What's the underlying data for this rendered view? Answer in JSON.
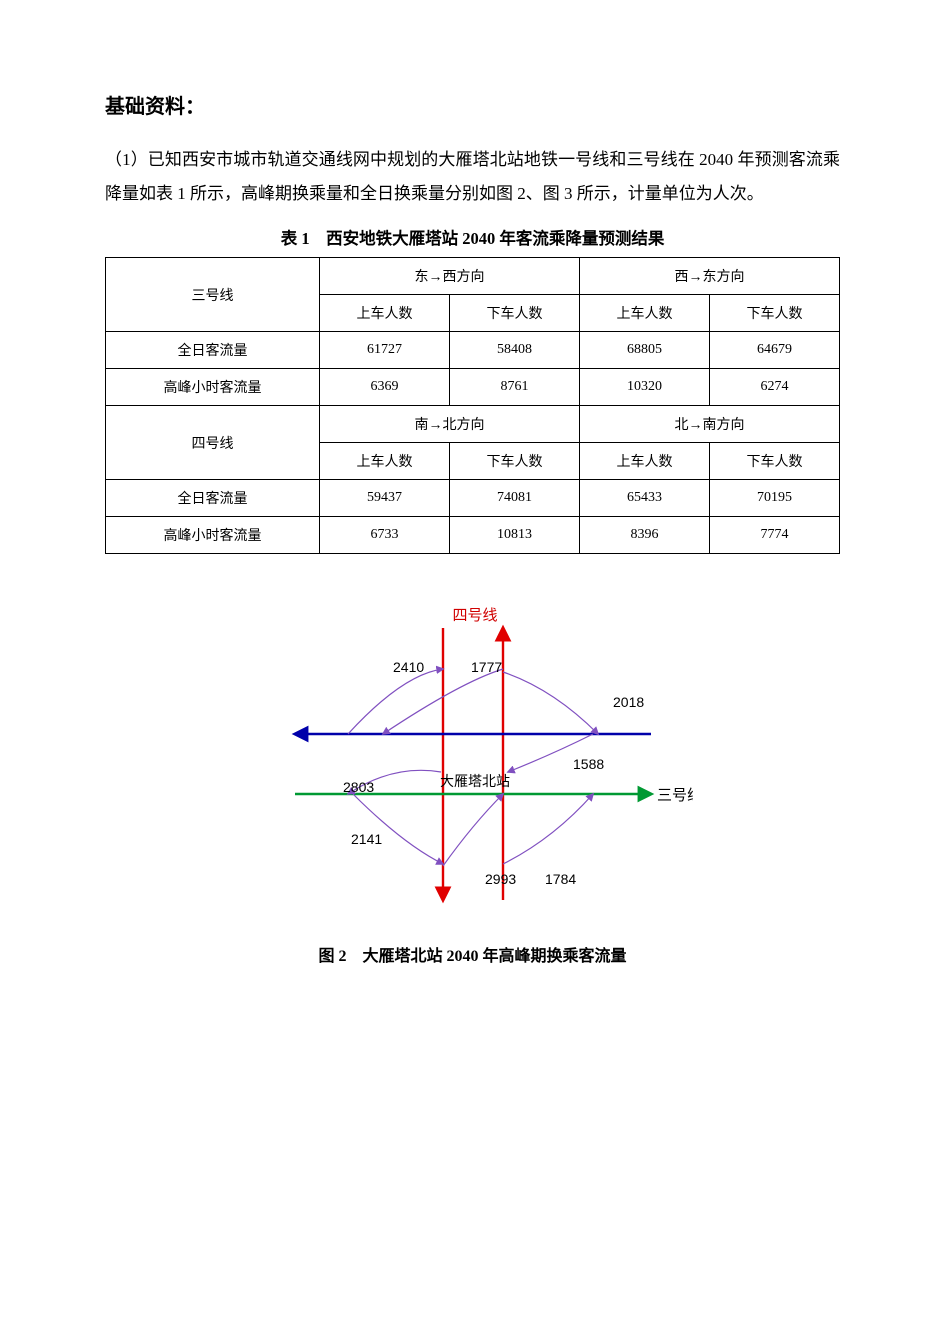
{
  "heading": "基础资料：",
  "paragraph1": "（1）已知西安市城市轨道交通线网中规划的大雁塔北站地铁一号线和三号线在 2040 年预测客流乘降量如表 1 所示，高峰期换乘量和全日换乘量分别如图 2、图 3 所示，计量单位为人次。",
  "table1": {
    "caption": "表 1　西安地铁大雁塔站 2040 年客流乘降量预测结果",
    "line3_label": "三号线",
    "dir_ew": "东→西方向",
    "dir_we": "西→东方向",
    "line4_label": "四号线",
    "dir_sn": "南→北方向",
    "dir_ns": "北→南方向",
    "h_board": "上车人数",
    "h_alight": "下车人数",
    "row_allday": "全日客流量",
    "row_peak": "高峰小时客流量",
    "line3": {
      "allday": {
        "ew_board": "61727",
        "ew_alight": "58408",
        "we_board": "68805",
        "we_alight": "64679"
      },
      "peak": {
        "ew_board": "6369",
        "ew_alight": "8761",
        "we_board": "10320",
        "we_alight": "6274"
      }
    },
    "line4": {
      "allday": {
        "sn_board": "59437",
        "sn_alight": "74081",
        "ns_board": "65433",
        "ns_alight": "70195"
      },
      "peak": {
        "sn_board": "6733",
        "sn_alight": "10813",
        "ns_board": "8396",
        "ns_alight": "7774"
      }
    }
  },
  "fig2": {
    "caption": "图 2　大雁塔北站 2040 年高峰期换乘客流量",
    "label_line4": "四号线",
    "label_line3": "三号线",
    "label_station": "大雁塔北站",
    "val_2410": "2410",
    "val_1777": "1777",
    "val_2018": "2018",
    "val_1588": "1588",
    "val_2803": "2803",
    "val_2141": "2141",
    "val_2993": "2993",
    "val_1784": "1784",
    "colors": {
      "red": "#e00000",
      "blue": "#0000aa",
      "green": "#009933",
      "curve": "#8050c0",
      "text_red": "#d00000",
      "black": "#000000"
    },
    "stroke": {
      "axis_width": 2.4,
      "curve_width": 1.2
    }
  }
}
